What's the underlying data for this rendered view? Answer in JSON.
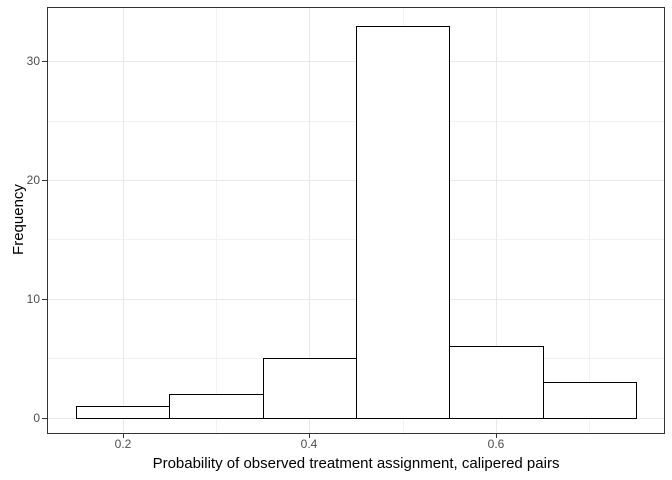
{
  "chart_data": {
    "type": "bar",
    "subtype": "histogram",
    "xlabel": "Probability of observed treatment assignment, calipered pairs",
    "ylabel": "Frequency",
    "bin_edges": [
      0.15,
      0.25,
      0.35,
      0.45,
      0.55,
      0.65,
      0.75
    ],
    "bin_centers": [
      0.2,
      0.3,
      0.4,
      0.5,
      0.6,
      0.7
    ],
    "values": [
      1,
      2,
      5,
      33,
      6,
      3
    ],
    "xlim": [
      0.12,
      0.78
    ],
    "ylim": [
      -1.3,
      34.5
    ],
    "x_major_ticks": [
      0.2,
      0.4,
      0.6
    ],
    "x_tick_labels": [
      "0.2",
      "0.4",
      "0.6"
    ],
    "x_minor_gridlines": [
      0.3,
      0.5,
      0.7
    ],
    "y_major_ticks": [
      0,
      10,
      20,
      30
    ],
    "y_tick_labels": [
      "0",
      "10",
      "20",
      "30"
    ],
    "y_minor_gridlines": [
      5,
      15,
      25
    ],
    "grid": "on",
    "legend": "none",
    "style": {
      "bar_fill": "#ffffff",
      "bar_stroke": "#000000",
      "panel_background": "#ffffff",
      "panel_border": "#333333",
      "grid_major_color": "#e8e8e8",
      "grid_minor_color": "#f2f2f2",
      "tick_color": "#333333",
      "tick_label_color": "#4d4d4d",
      "axis_title_color": "#000000",
      "figure_background": "#ffffff"
    }
  }
}
